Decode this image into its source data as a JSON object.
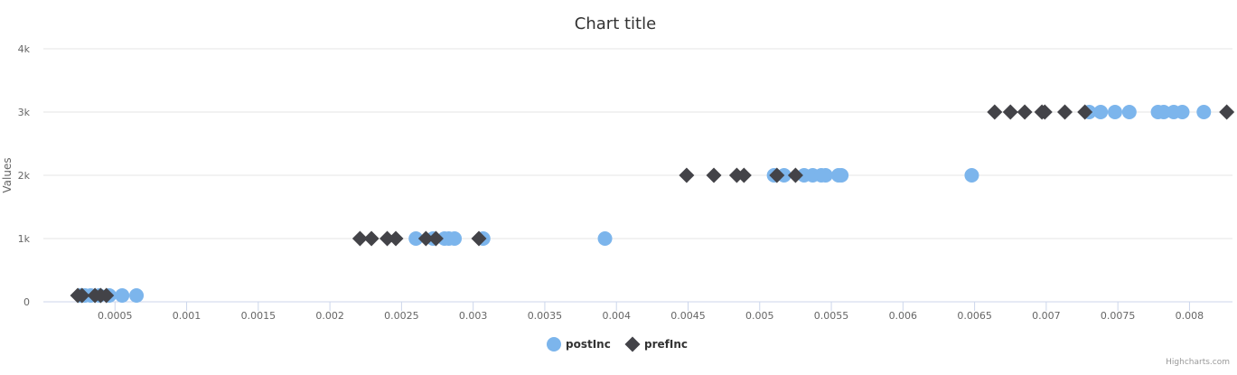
{
  "chart_data": {
    "type": "scatter",
    "title": "Chart title",
    "xlabel": "",
    "ylabel": "Values",
    "xlim": [
      0,
      0.0083
    ],
    "ylim": [
      0,
      4000
    ],
    "x_ticks": [
      {
        "value": 0.0005,
        "label": "0.0005"
      },
      {
        "value": 0.001,
        "label": "0.001"
      },
      {
        "value": 0.0015,
        "label": "0.0015"
      },
      {
        "value": 0.002,
        "label": "0.002"
      },
      {
        "value": 0.0025,
        "label": "0.0025"
      },
      {
        "value": 0.003,
        "label": "0.003"
      },
      {
        "value": 0.0035,
        "label": "0.0035"
      },
      {
        "value": 0.004,
        "label": "0.004"
      },
      {
        "value": 0.0045,
        "label": "0.0045"
      },
      {
        "value": 0.005,
        "label": "0.005"
      },
      {
        "value": 0.0055,
        "label": "0.0055"
      },
      {
        "value": 0.006,
        "label": "0.006"
      },
      {
        "value": 0.0065,
        "label": "0.0065"
      },
      {
        "value": 0.007,
        "label": "0.007"
      },
      {
        "value": 0.0075,
        "label": "0.0075"
      },
      {
        "value": 0.008,
        "label": "0.008"
      }
    ],
    "y_ticks": [
      {
        "value": 0,
        "label": "0"
      },
      {
        "value": 1000,
        "label": "1k"
      },
      {
        "value": 2000,
        "label": "2k"
      },
      {
        "value": 3000,
        "label": "3k"
      },
      {
        "value": 4000,
        "label": "4k"
      }
    ],
    "grid": "horizontal",
    "legend_position": "bottom-center",
    "series": [
      {
        "name": "postInc",
        "marker": "circle",
        "color": "#7cb5ec",
        "points": [
          [
            0.00026,
            100
          ],
          [
            0.00029,
            100
          ],
          [
            0.00033,
            100
          ],
          [
            0.00039,
            100
          ],
          [
            0.00046,
            100
          ],
          [
            0.00055,
            100
          ],
          [
            0.00065,
            100
          ],
          [
            0.0026,
            1000
          ],
          [
            0.00272,
            1000
          ],
          [
            0.0028,
            1000
          ],
          [
            0.00283,
            1000
          ],
          [
            0.00287,
            1000
          ],
          [
            0.00307,
            1000
          ],
          [
            0.00392,
            1000
          ],
          [
            0.0051,
            2000
          ],
          [
            0.00517,
            2000
          ],
          [
            0.00531,
            2000
          ],
          [
            0.00537,
            2000
          ],
          [
            0.00543,
            2000
          ],
          [
            0.00546,
            2000
          ],
          [
            0.00555,
            2000
          ],
          [
            0.00557,
            2000
          ],
          [
            0.00648,
            2000
          ],
          [
            0.0073,
            3000
          ],
          [
            0.00738,
            3000
          ],
          [
            0.00748,
            3000
          ],
          [
            0.00758,
            3000
          ],
          [
            0.00778,
            3000
          ],
          [
            0.00782,
            3000
          ],
          [
            0.00789,
            3000
          ],
          [
            0.00795,
            3000
          ],
          [
            0.0081,
            3000
          ]
        ]
      },
      {
        "name": "prefInc",
        "marker": "diamond",
        "color": "#434348",
        "points": [
          [
            0.00024,
            100
          ],
          [
            0.00027,
            100
          ],
          [
            0.00036,
            100
          ],
          [
            0.0004,
            100
          ],
          [
            0.00044,
            100
          ],
          [
            0.00221,
            1000
          ],
          [
            0.00229,
            1000
          ],
          [
            0.0024,
            1000
          ],
          [
            0.00246,
            1000
          ],
          [
            0.00267,
            1000
          ],
          [
            0.00274,
            1000
          ],
          [
            0.00304,
            1000
          ],
          [
            0.00449,
            2000
          ],
          [
            0.00468,
            2000
          ],
          [
            0.00484,
            2000
          ],
          [
            0.00489,
            2000
          ],
          [
            0.00512,
            2000
          ],
          [
            0.00525,
            2000
          ],
          [
            0.00664,
            3000
          ],
          [
            0.00675,
            3000
          ],
          [
            0.00685,
            3000
          ],
          [
            0.00697,
            3000
          ],
          [
            0.00699,
            3000
          ],
          [
            0.00713,
            3000
          ],
          [
            0.00727,
            3000
          ],
          [
            0.00826,
            3000
          ]
        ]
      }
    ],
    "credits": "Highcharts.com"
  }
}
